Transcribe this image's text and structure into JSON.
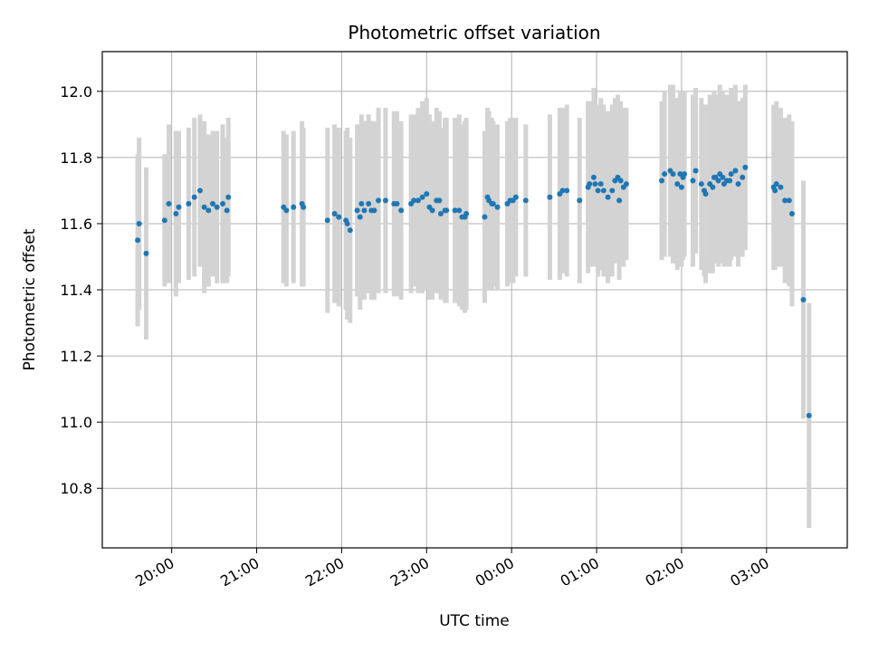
{
  "chart_data": {
    "type": "scatter",
    "title": "Photometric offset variation",
    "xlabel": "UTC time",
    "ylabel": "Photometric offset",
    "x_axis_type": "time",
    "xlim": [
      "19:11",
      "03:57"
    ],
    "ylim": [
      10.62,
      12.12
    ],
    "grid": true,
    "xticks": [
      "20:00",
      "21:00",
      "22:00",
      "23:00",
      "00:00",
      "01:00",
      "02:00",
      "03:00"
    ],
    "yticks": [
      "10.8",
      "11.0",
      "11.2",
      "11.4",
      "11.6",
      "11.8",
      "12.0"
    ],
    "colors": {
      "points": "#1f77b4",
      "error_bars": "#d3d3d3",
      "grid": "#b0b0b0",
      "axes": "#000000"
    },
    "series": [
      {
        "x": [
          "19:36",
          "19:37",
          "19:42",
          "19:55",
          "19:58",
          "20:03",
          "20:05",
          "20:12",
          "20:16",
          "20:20",
          "20:23",
          "20:26",
          "20:29",
          "20:32",
          "20:36",
          "20:39",
          "20:40",
          "21:19",
          "21:21",
          "21:26",
          "21:32",
          "21:33",
          "21:50",
          "21:55",
          "21:58",
          "22:03",
          "22:04",
          "22:06",
          "22:11",
          "22:13",
          "22:14",
          "22:16",
          "22:19",
          "22:21",
          "22:23",
          "22:26",
          "22:31",
          "22:37",
          "22:39",
          "22:42",
          "22:49",
          "22:51",
          "22:54",
          "22:57",
          "23:00",
          "23:02",
          "23:04",
          "23:07",
          "23:09",
          "23:10",
          "23:13",
          "23:14",
          "23:20",
          "23:23",
          "23:25",
          "23:27",
          "23:28",
          "23:41",
          "23:43",
          "23:44",
          "23:46",
          "23:47",
          "23:50",
          "23:57",
          "23:59",
          "00:01",
          "00:03",
          "00:10",
          "00:27",
          "00:34",
          "00:36",
          "00:39",
          "00:48",
          "00:54",
          "00:55",
          "00:58",
          "00:59",
          "01:01",
          "01:03",
          "01:05",
          "01:08",
          "01:11",
          "01:13",
          "01:15",
          "01:16",
          "01:17",
          "01:19",
          "01:21",
          "01:46",
          "01:48",
          "01:52",
          "01:54",
          "01:57",
          "01:59",
          "02:00",
          "02:01",
          "02:02",
          "02:08",
          "02:10",
          "02:14",
          "02:16",
          "02:17",
          "02:20",
          "02:22",
          "02:23",
          "02:24",
          "02:26",
          "02:27",
          "02:29",
          "02:30",
          "02:32",
          "02:34",
          "02:35",
          "02:38",
          "02:40",
          "02:43",
          "02:45",
          "03:05",
          "03:06",
          "03:07",
          "03:10",
          "03:13",
          "03:16",
          "03:18",
          "03:26",
          "03:30"
        ],
        "y": [
          11.55,
          11.6,
          11.51,
          11.61,
          11.66,
          11.63,
          11.65,
          11.66,
          11.68,
          11.7,
          11.65,
          11.64,
          11.66,
          11.65,
          11.66,
          11.64,
          11.68,
          11.65,
          11.64,
          11.65,
          11.66,
          11.65,
          11.61,
          11.63,
          11.62,
          11.61,
          11.6,
          11.58,
          11.64,
          11.62,
          11.66,
          11.64,
          11.66,
          11.64,
          11.64,
          11.67,
          11.67,
          11.66,
          11.66,
          11.64,
          11.66,
          11.67,
          11.67,
          11.68,
          11.69,
          11.65,
          11.64,
          11.67,
          11.67,
          11.63,
          11.64,
          11.64,
          11.64,
          11.64,
          11.62,
          11.62,
          11.63,
          11.62,
          11.68,
          11.67,
          11.66,
          11.66,
          11.65,
          11.66,
          11.67,
          11.67,
          11.68,
          11.67,
          11.68,
          11.69,
          11.7,
          11.7,
          11.67,
          11.71,
          11.72,
          11.74,
          11.72,
          11.7,
          11.72,
          11.7,
          11.68,
          11.7,
          11.73,
          11.74,
          11.67,
          11.73,
          11.71,
          11.72,
          11.73,
          11.75,
          11.76,
          11.75,
          11.72,
          11.75,
          11.71,
          11.74,
          11.75,
          11.73,
          11.76,
          11.72,
          11.7,
          11.69,
          11.72,
          11.71,
          11.74,
          11.74,
          11.73,
          11.75,
          11.74,
          11.72,
          11.73,
          11.73,
          11.75,
          11.76,
          11.72,
          11.74,
          11.77,
          11.71,
          11.7,
          11.72,
          11.71,
          11.67,
          11.67,
          11.63,
          11.37,
          11.02
        ],
        "errors": [
          0.26,
          0.26,
          0.26,
          0.2,
          0.24,
          0.25,
          0.23,
          0.23,
          0.24,
          0.23,
          0.26,
          0.23,
          0.22,
          0.23,
          0.24,
          0.22,
          0.24,
          0.23,
          0.23,
          0.23,
          0.25,
          0.24,
          0.28,
          0.27,
          0.27,
          0.27,
          0.29,
          0.28,
          0.26,
          0.28,
          0.27,
          0.27,
          0.27,
          0.27,
          0.27,
          0.28,
          0.28,
          0.28,
          0.28,
          0.27,
          0.27,
          0.26,
          0.28,
          0.29,
          0.29,
          0.28,
          0.27,
          0.28,
          0.27,
          0.26,
          0.28,
          0.28,
          0.28,
          0.29,
          0.28,
          0.29,
          0.29,
          0.26,
          0.27,
          0.27,
          0.26,
          0.25,
          0.25,
          0.25,
          0.25,
          0.25,
          0.24,
          0.23,
          0.25,
          0.26,
          0.25,
          0.26,
          0.25,
          0.26,
          0.25,
          0.27,
          0.25,
          0.26,
          0.26,
          0.26,
          0.26,
          0.26,
          0.25,
          0.25,
          0.24,
          0.24,
          0.24,
          0.23,
          0.24,
          0.25,
          0.26,
          0.27,
          0.26,
          0.25,
          0.24,
          0.25,
          0.25,
          0.26,
          0.25,
          0.26,
          0.26,
          0.27,
          0.27,
          0.26,
          0.26,
          0.25,
          0.26,
          0.27,
          0.26,
          0.25,
          0.26,
          0.26,
          0.26,
          0.26,
          0.25,
          0.24,
          0.25,
          0.25,
          0.24,
          0.25,
          0.24,
          0.25,
          0.26,
          0.28,
          0.36,
          0.34
        ]
      }
    ]
  }
}
